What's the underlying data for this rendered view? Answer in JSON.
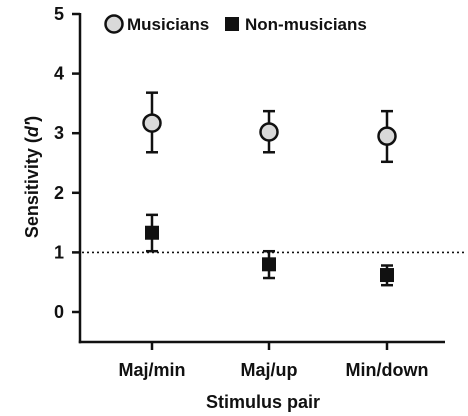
{
  "chart_data": {
    "type": "scatter",
    "categories": [
      "Maj/min",
      "Maj/up",
      "Min/down"
    ],
    "xlabel": "Stimulus pair",
    "ylabel": "Sensitivity (d′)",
    "ylabel_main": "Sensitivity (",
    "ylabel_italic": "d′",
    "ylabel_tail": ")",
    "ylim": [
      -0.5,
      5
    ],
    "yticks": [
      0,
      1,
      2,
      3,
      4,
      5
    ],
    "reference_line": {
      "y": 1,
      "style": "dotted"
    },
    "grid": false,
    "legend": {
      "placement": "top"
    },
    "series": [
      {
        "name": "Musicians",
        "marker": "circle",
        "color": "#d9d9d9",
        "values": [
          3.17,
          3.02,
          2.95
        ],
        "err_low": [
          2.68,
          2.68,
          2.52
        ],
        "err_high": [
          3.68,
          3.37,
          3.37
        ]
      },
      {
        "name": "Non-musicians",
        "marker": "square",
        "color": "#111111",
        "values": [
          1.33,
          0.8,
          0.62
        ],
        "err_low": [
          1.02,
          0.57,
          0.45
        ],
        "err_high": [
          1.63,
          1.02,
          0.78
        ]
      }
    ]
  }
}
